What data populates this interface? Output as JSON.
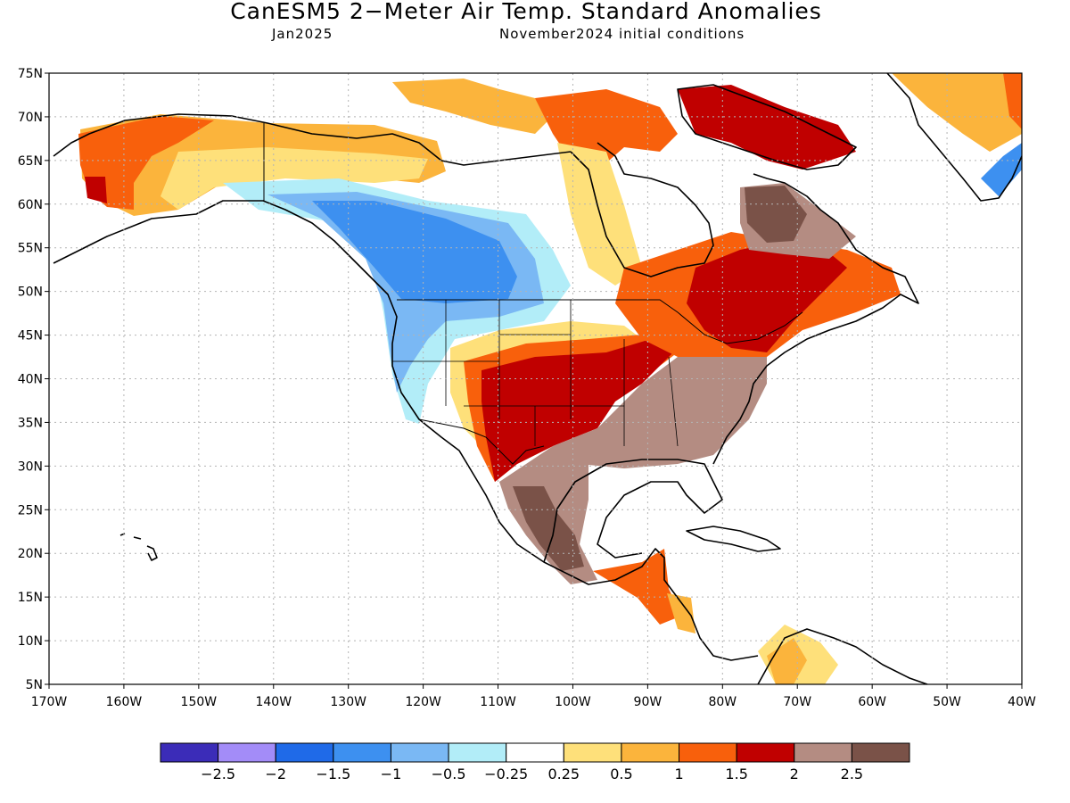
{
  "title": "CanESM5 2−Meter Air Temp. Standard Anomalies",
  "subtitle_left": "Jan2025",
  "subtitle_right": "November2024 initial conditions",
  "map": {
    "lon_range": [
      -170,
      -40
    ],
    "lat_range": [
      5,
      75
    ],
    "lat_ticks": [
      "75N",
      "70N",
      "65N",
      "60N",
      "55N",
      "50N",
      "45N",
      "40N",
      "35N",
      "30N",
      "25N",
      "20N",
      "15N",
      "10N",
      "5N"
    ],
    "lon_ticks": [
      "170W",
      "160W",
      "150W",
      "140W",
      "130W",
      "120W",
      "110W",
      "100W",
      "90W",
      "80W",
      "70W",
      "60W",
      "50W",
      "40W"
    ]
  },
  "legend": {
    "colors": [
      "#3b2cb8",
      "#a38cf8",
      "#1f6ae8",
      "#3d90f0",
      "#7ab8f4",
      "#b2edf8",
      "#ffffff",
      "#fee07a",
      "#fbb43c",
      "#f8600c",
      "#c00000",
      "#b48c82",
      "#7a5248"
    ],
    "labels": [
      "−2.5",
      "−2",
      "−1.5",
      "−1",
      "−0.5",
      "−0.25",
      "0.25",
      "0.5",
      "1",
      "1.5",
      "2",
      "2.5"
    ]
  },
  "colors": {
    "background": "#ffffff",
    "coast": "#000000",
    "grid": "#b4b4b4"
  }
}
